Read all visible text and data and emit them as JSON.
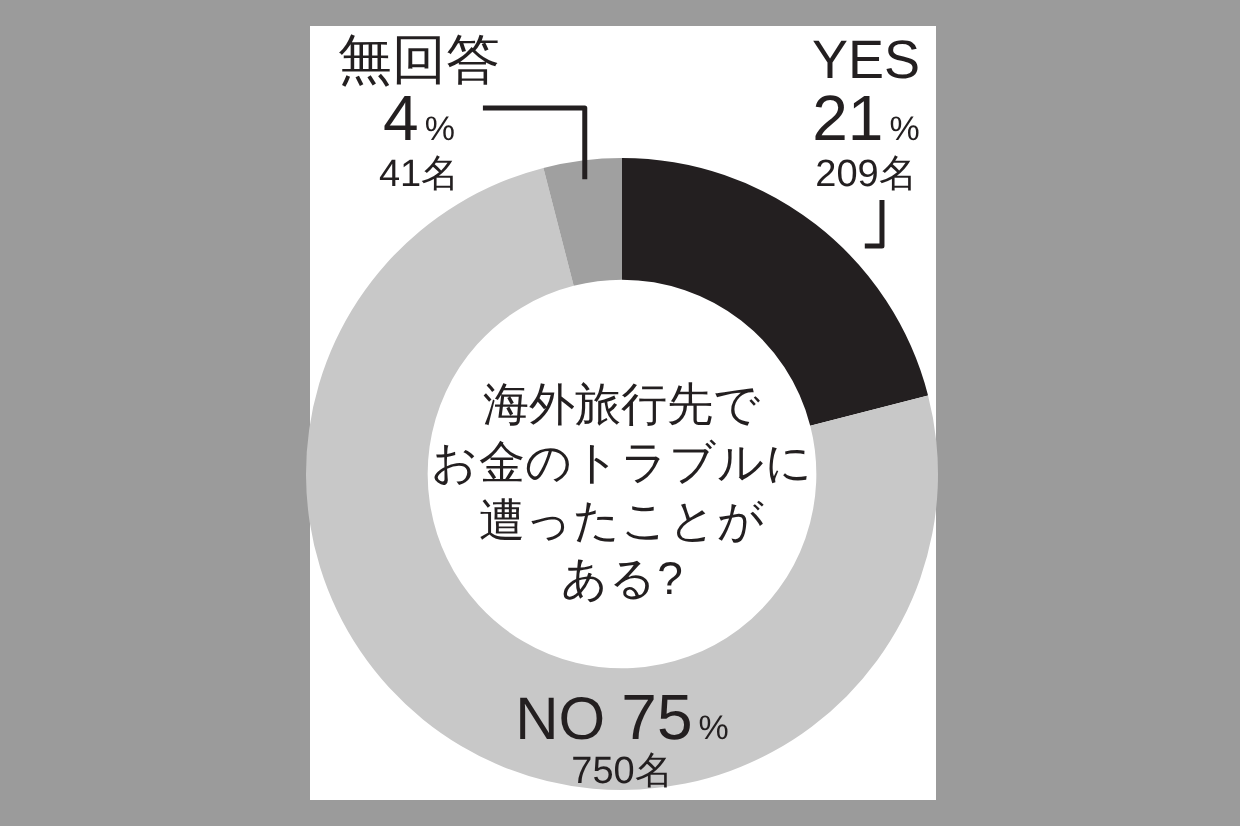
{
  "chart_data": {
    "type": "donut",
    "title": "海外旅行先でお金のトラブルに遭ったことがある?",
    "categories": [
      "YES",
      "NO",
      "無回答"
    ],
    "values": [
      21,
      75,
      4
    ],
    "colors": [
      "#231f20",
      "#c8c8c8",
      "#a0a0a0"
    ],
    "value_labels": [
      "21%",
      "75%",
      "4%"
    ],
    "annotations": [
      "209名",
      "750名",
      "41名"
    ]
  }
}
